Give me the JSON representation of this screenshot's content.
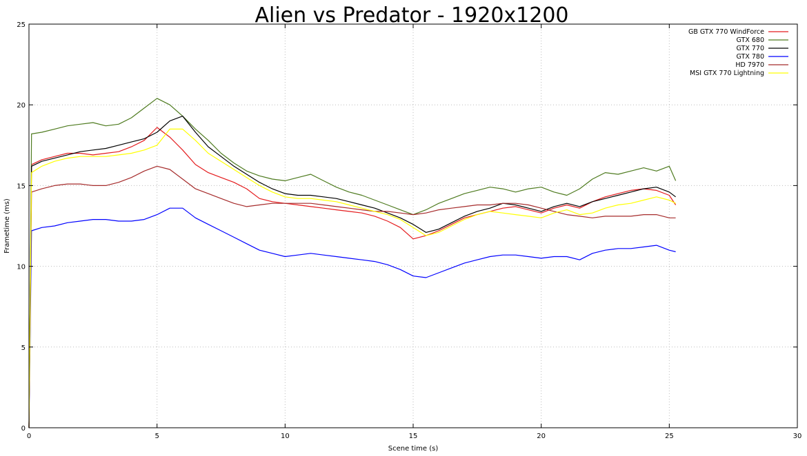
{
  "chart_data": {
    "type": "line",
    "title": "Alien vs Predator - 1920x1200",
    "xlabel": "Scene time (s)",
    "ylabel": "Frametime (ms)",
    "xlim": [
      0,
      30
    ],
    "ylim": [
      0,
      25
    ],
    "xticks": [
      0,
      5,
      10,
      15,
      20,
      25,
      30
    ],
    "yticks": [
      0,
      5,
      10,
      15,
      20,
      25
    ],
    "grid": true,
    "legend_position": "top-right",
    "series": [
      {
        "name": "GB GTX 770 WindForce",
        "color": "#e41a1c",
        "x": [
          0,
          0.1,
          0.5,
          1,
          1.5,
          2,
          2.5,
          3,
          3.5,
          4,
          4.5,
          5,
          5.5,
          6,
          6.5,
          7,
          7.5,
          8,
          8.5,
          9,
          9.5,
          10,
          10.5,
          11,
          11.5,
          12,
          12.5,
          13,
          13.5,
          14,
          14.5,
          15,
          15.5,
          16,
          16.5,
          17,
          17.5,
          18,
          18.5,
          19,
          19.5,
          20,
          20.5,
          21,
          21.5,
          22,
          22.5,
          23,
          23.5,
          24,
          24.5,
          25,
          25.25
        ],
        "y": [
          0,
          16.3,
          16.6,
          16.8,
          17.0,
          17.0,
          16.9,
          17.0,
          17.1,
          17.4,
          17.8,
          18.6,
          18.0,
          17.2,
          16.3,
          15.8,
          15.5,
          15.2,
          14.8,
          14.2,
          14.0,
          13.9,
          13.8,
          13.7,
          13.6,
          13.5,
          13.4,
          13.3,
          13.1,
          12.8,
          12.4,
          11.7,
          11.9,
          12.2,
          12.6,
          13.0,
          13.2,
          13.4,
          13.6,
          13.7,
          13.5,
          13.3,
          13.6,
          13.8,
          13.6,
          14.0,
          14.3,
          14.5,
          14.7,
          14.8,
          14.7,
          14.4,
          13.8
        ]
      },
      {
        "name": "GTX 680",
        "color": "#4d7a1e",
        "x": [
          0,
          0.1,
          0.5,
          1,
          1.5,
          2,
          2.5,
          3,
          3.5,
          4,
          4.5,
          5,
          5.5,
          6,
          6.5,
          7,
          7.5,
          8,
          8.5,
          9,
          9.5,
          10,
          10.5,
          11,
          11.5,
          12,
          12.5,
          13,
          13.5,
          14,
          14.5,
          15,
          15.5,
          16,
          16.5,
          17,
          17.5,
          18,
          18.5,
          19,
          19.5,
          20,
          20.5,
          21,
          21.5,
          22,
          22.5,
          23,
          23.5,
          24,
          24.5,
          25,
          25.25
        ],
        "y": [
          0,
          18.2,
          18.3,
          18.5,
          18.7,
          18.8,
          18.9,
          18.7,
          18.8,
          19.2,
          19.8,
          20.4,
          20.0,
          19.3,
          18.5,
          17.8,
          17.0,
          16.4,
          15.9,
          15.6,
          15.4,
          15.3,
          15.5,
          15.7,
          15.3,
          14.9,
          14.6,
          14.4,
          14.1,
          13.8,
          13.5,
          13.2,
          13.5,
          13.9,
          14.2,
          14.5,
          14.7,
          14.9,
          14.8,
          14.6,
          14.8,
          14.9,
          14.6,
          14.4,
          14.8,
          15.4,
          15.8,
          15.7,
          15.9,
          16.1,
          15.9,
          16.2,
          15.3
        ]
      },
      {
        "name": "GTX 770",
        "color": "#000000",
        "x": [
          0,
          0.1,
          0.5,
          1,
          1.5,
          2,
          2.5,
          3,
          3.5,
          4,
          4.5,
          5,
          5.5,
          6,
          6.5,
          7,
          7.5,
          8,
          8.5,
          9,
          9.5,
          10,
          10.5,
          11,
          11.5,
          12,
          12.5,
          13,
          13.5,
          14,
          14.5,
          15,
          15.5,
          16,
          16.5,
          17,
          17.5,
          18,
          18.5,
          19,
          19.5,
          20,
          20.5,
          21,
          21.5,
          22,
          22.5,
          23,
          23.5,
          24,
          24.5,
          25,
          25.25
        ],
        "y": [
          0,
          16.2,
          16.5,
          16.7,
          16.9,
          17.1,
          17.2,
          17.3,
          17.5,
          17.7,
          17.9,
          18.3,
          19.0,
          19.3,
          18.3,
          17.4,
          16.8,
          16.2,
          15.7,
          15.2,
          14.8,
          14.5,
          14.4,
          14.4,
          14.3,
          14.2,
          14.0,
          13.8,
          13.6,
          13.3,
          13.0,
          12.6,
          12.1,
          12.3,
          12.7,
          13.1,
          13.4,
          13.6,
          13.9,
          13.8,
          13.6,
          13.4,
          13.7,
          13.9,
          13.7,
          14.0,
          14.2,
          14.4,
          14.6,
          14.8,
          14.9,
          14.6,
          14.3
        ]
      },
      {
        "name": "GTX 780",
        "color": "#0000ff",
        "x": [
          0,
          0.1,
          0.5,
          1,
          1.5,
          2,
          2.5,
          3,
          3.5,
          4,
          4.5,
          5,
          5.5,
          6,
          6.5,
          7,
          7.5,
          8,
          8.5,
          9,
          9.5,
          10,
          10.5,
          11,
          11.5,
          12,
          12.5,
          13,
          13.5,
          14,
          14.5,
          15,
          15.5,
          16,
          16.5,
          17,
          17.5,
          18,
          18.5,
          19,
          19.5,
          20,
          20.5,
          21,
          21.5,
          22,
          22.5,
          23,
          23.5,
          24,
          24.5,
          25,
          25.25
        ],
        "y": [
          0,
          12.2,
          12.4,
          12.5,
          12.7,
          12.8,
          12.9,
          12.9,
          12.8,
          12.8,
          12.9,
          13.2,
          13.6,
          13.6,
          13.0,
          12.6,
          12.2,
          11.8,
          11.4,
          11.0,
          10.8,
          10.6,
          10.7,
          10.8,
          10.7,
          10.6,
          10.5,
          10.4,
          10.3,
          10.1,
          9.8,
          9.4,
          9.3,
          9.6,
          9.9,
          10.2,
          10.4,
          10.6,
          10.7,
          10.7,
          10.6,
          10.5,
          10.6,
          10.6,
          10.4,
          10.8,
          11.0,
          11.1,
          11.1,
          11.2,
          11.3,
          11.0,
          10.9
        ]
      },
      {
        "name": "HD 7970",
        "color": "#a52a2a",
        "x": [
          0,
          0.1,
          0.5,
          1,
          1.5,
          2,
          2.5,
          3,
          3.5,
          4,
          4.5,
          5,
          5.5,
          6,
          6.5,
          7,
          7.5,
          8,
          8.5,
          9,
          9.5,
          10,
          10.5,
          11,
          11.5,
          12,
          12.5,
          13,
          13.5,
          14,
          14.5,
          15,
          15.5,
          16,
          16.5,
          17,
          17.5,
          18,
          18.5,
          19,
          19.5,
          20,
          20.5,
          21,
          21.5,
          22,
          22.5,
          23,
          23.5,
          24,
          24.5,
          25,
          25.25
        ],
        "y": [
          0,
          14.6,
          14.8,
          15.0,
          15.1,
          15.1,
          15.0,
          15.0,
          15.2,
          15.5,
          15.9,
          16.2,
          16.0,
          15.4,
          14.8,
          14.5,
          14.2,
          13.9,
          13.7,
          13.8,
          13.9,
          13.9,
          13.9,
          13.9,
          13.8,
          13.7,
          13.6,
          13.5,
          13.4,
          13.4,
          13.3,
          13.2,
          13.3,
          13.5,
          13.6,
          13.7,
          13.8,
          13.8,
          13.9,
          13.9,
          13.8,
          13.6,
          13.4,
          13.2,
          13.1,
          13.0,
          13.1,
          13.1,
          13.1,
          13.2,
          13.2,
          13.0,
          13.0
        ]
      },
      {
        "name": "MSI GTX 770 Lightning",
        "color": "#ffff00",
        "x": [
          0,
          0.1,
          0.5,
          1,
          1.5,
          2,
          2.5,
          3,
          3.5,
          4,
          4.5,
          5,
          5.5,
          6,
          6.5,
          7,
          7.5,
          8,
          8.5,
          9,
          9.5,
          10,
          10.5,
          11,
          11.5,
          12,
          12.5,
          13,
          13.5,
          14,
          14.5,
          15,
          15.5,
          16,
          16.5,
          17,
          17.5,
          18,
          18.5,
          19,
          19.5,
          20,
          20.5,
          21,
          21.5,
          22,
          22.5,
          23,
          23.5,
          24,
          24.5,
          25,
          25.25
        ],
        "y": [
          0,
          15.8,
          16.2,
          16.5,
          16.7,
          16.8,
          16.8,
          16.8,
          16.9,
          17.0,
          17.2,
          17.5,
          18.5,
          18.5,
          17.8,
          17.0,
          16.5,
          16.0,
          15.5,
          15.0,
          14.6,
          14.3,
          14.2,
          14.2,
          14.1,
          14.0,
          13.8,
          13.6,
          13.4,
          13.2,
          12.9,
          12.4,
          11.9,
          12.1,
          12.5,
          12.9,
          13.2,
          13.4,
          13.3,
          13.2,
          13.1,
          13.0,
          13.3,
          13.5,
          13.2,
          13.3,
          13.6,
          13.8,
          13.9,
          14.1,
          14.3,
          14.1,
          13.9
        ]
      }
    ]
  }
}
